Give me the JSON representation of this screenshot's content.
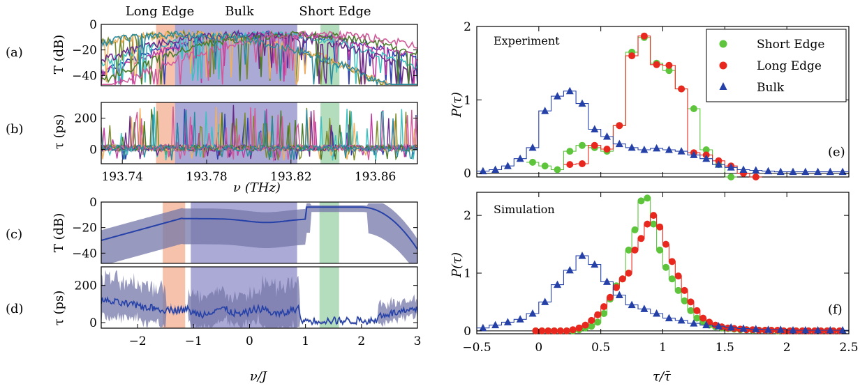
{
  "bands": {
    "top_labels": [
      "Long Edge",
      "Bulk",
      "Short Edge"
    ],
    "colors": {
      "long": "#f4b79c",
      "bulk": "#9c9bd0",
      "short": "#a6d7b2"
    }
  },
  "left_panels": [
    {
      "id": "a",
      "label": "(a)",
      "ylabel": "T (dB)",
      "ylim": [
        -48,
        0
      ],
      "yticks": [
        0,
        -20,
        -40
      ],
      "xaxis": "freq",
      "bands_x": [
        [
          193.756,
          193.765
        ],
        [
          193.765,
          193.823
        ],
        [
          193.834,
          193.843
        ]
      ]
    },
    {
      "id": "b",
      "label": "(b)",
      "ylabel": "τ (ps)",
      "ylim": [
        -90,
        300
      ],
      "yticks": [
        200,
        0
      ],
      "xaxis": "freq",
      "bands_x": [
        [
          193.756,
          193.765
        ],
        [
          193.765,
          193.823
        ],
        [
          193.834,
          193.843
        ]
      ],
      "xticks": [
        "193.74",
        "193.78",
        "193.82",
        "193.86"
      ],
      "xtick_values": [
        193.74,
        193.78,
        193.82,
        193.86
      ],
      "xlabel": "ν (THz)",
      "xlim": [
        193.73,
        193.88
      ]
    },
    {
      "id": "c",
      "label": "(c)",
      "ylabel": "T (dB)",
      "ylim": [
        -48,
        0
      ],
      "yticks": [
        0,
        -20,
        -40
      ],
      "xaxis": "nuJ",
      "bands_x": [
        [
          -1.55,
          -1.15
        ],
        [
          -1.05,
          0.85
        ],
        [
          1.25,
          1.6
        ]
      ]
    },
    {
      "id": "d",
      "label": "(d)",
      "ylabel": "τ (ps)",
      "ylim": [
        -30,
        300
      ],
      "yticks": [
        200,
        0
      ],
      "xaxis": "nuJ",
      "bands_x": [
        [
          -1.55,
          -1.15
        ],
        [
          -1.05,
          0.85
        ],
        [
          1.25,
          1.6
        ]
      ],
      "xticks": [
        "−2",
        "−1",
        "0",
        "1",
        "2",
        "3"
      ],
      "xtick_values": [
        -2,
        -1,
        0,
        1,
        2,
        3
      ],
      "xlabel": "ν/J",
      "xlim": [
        -2.65,
        3
      ]
    }
  ],
  "chart_data": [
    {
      "type": "line",
      "panel": "e",
      "label": "(e)",
      "annotation": "Experiment",
      "xlabel": "τ/τ̄",
      "ylabel": "P(τ)",
      "xlim": [
        -0.5,
        2.5
      ],
      "ylim": [
        -0.05,
        2.0
      ],
      "xticks": [
        -0.5,
        0,
        0.5,
        1,
        1.5,
        2,
        2.5
      ],
      "xtick_labels": [
        "−0.5",
        "0",
        "0.5",
        "1",
        "1.5",
        "2",
        "2.5"
      ],
      "yticks": [
        0,
        1,
        2
      ],
      "series": [
        {
          "name": "Short Edge",
          "color": "#5dc43c",
          "marker": "circle",
          "bin": 0.1,
          "x": [
            -0.05,
            0.05,
            0.15,
            0.25,
            0.35,
            0.45,
            0.55,
            0.65,
            0.75,
            0.85,
            0.95,
            1.05,
            1.15,
            1.25,
            1.35,
            1.45,
            1.55
          ],
          "values": [
            0.15,
            0.1,
            0.05,
            0.3,
            0.38,
            0.35,
            0.3,
            0.65,
            1.65,
            1.85,
            1.5,
            1.4,
            1.15,
            0.88,
            0.32,
            0.12,
            -0.05
          ]
        },
        {
          "name": "Long Edge",
          "color": "#e8281e",
          "marker": "circle",
          "bin": 0.1,
          "x": [
            0.25,
            0.35,
            0.45,
            0.55,
            0.65,
            0.75,
            0.85,
            0.95,
            1.05,
            1.15,
            1.25,
            1.35,
            1.45,
            1.55,
            1.65,
            1.75
          ],
          "values": [
            0.12,
            0.13,
            0.38,
            0.33,
            0.65,
            1.6,
            1.87,
            1.48,
            1.47,
            1.15,
            0.28,
            0.25,
            0.17,
            0.1,
            0.0,
            -0.05
          ]
        },
        {
          "name": "Bulk",
          "color": "#2541a8",
          "marker": "triangle",
          "bin": 0.1,
          "x": [
            -0.45,
            -0.35,
            -0.25,
            -0.15,
            -0.05,
            0.05,
            0.15,
            0.25,
            0.35,
            0.45,
            0.55,
            0.65,
            0.75,
            0.85,
            0.95,
            1.05,
            1.15,
            1.25,
            1.35,
            1.45,
            1.55,
            1.65,
            1.75,
            1.85,
            1.95,
            2.05,
            2.15,
            2.25,
            2.35,
            2.45
          ],
          "values": [
            0.03,
            0.05,
            0.1,
            0.2,
            0.35,
            0.85,
            1.05,
            1.12,
            0.95,
            0.6,
            0.5,
            0.4,
            0.35,
            0.32,
            0.34,
            0.32,
            0.3,
            0.25,
            0.2,
            0.12,
            0.08,
            0.05,
            0.04,
            0.03,
            0.02,
            0.02,
            0.02,
            0.02,
            0.02,
            0.02
          ]
        }
      ],
      "legend": "top-right",
      "grid": false
    },
    {
      "type": "line",
      "panel": "f",
      "label": "(f)",
      "annotation": "Simulation",
      "xlabel": "τ/τ̄",
      "ylabel": "P(τ)",
      "xlim": [
        -0.5,
        2.5
      ],
      "ylim": [
        -0.05,
        2.4
      ],
      "xticks": [
        -0.5,
        0,
        0.5,
        1,
        1.5,
        2,
        2.5
      ],
      "xtick_labels": [
        "−0.5",
        "0",
        "0.5",
        "1",
        "1.5",
        "2",
        "2.5"
      ],
      "yticks": [
        0,
        1,
        2
      ],
      "series": [
        {
          "name": "Short Edge",
          "color": "#5dc43c",
          "marker": "circle",
          "bin": 0.05,
          "x": [
            -0.025,
            0.025,
            0.075,
            0.125,
            0.175,
            0.225,
            0.275,
            0.325,
            0.375,
            0.425,
            0.475,
            0.525,
            0.575,
            0.625,
            0.675,
            0.725,
            0.775,
            0.825,
            0.875,
            0.925,
            0.975,
            1.025,
            1.075,
            1.125,
            1.175,
            1.225,
            1.275,
            1.325,
            1.375,
            1.425,
            1.475,
            1.525,
            1.575,
            1.625,
            1.675,
            1.725,
            1.775,
            1.825,
            1.875,
            1.925,
            1.975,
            2.025,
            2.075,
            2.125,
            2.175,
            2.225,
            2.275,
            2.325,
            2.375,
            2.425
          ],
          "values": [
            0,
            0,
            0,
            0,
            0,
            0,
            0,
            0.02,
            0.05,
            0.08,
            0.15,
            0.3,
            0.55,
            0.78,
            0.9,
            1.4,
            1.75,
            2.25,
            2.3,
            1.85,
            1.4,
            1.1,
            0.9,
            0.7,
            0.52,
            0.35,
            0.22,
            0.15,
            0.1,
            0.07,
            0.05,
            0.04,
            0.03,
            0.02,
            0.02,
            0.01,
            0.01,
            0.01,
            0.01,
            0,
            0,
            0,
            0,
            0,
            0,
            0,
            0,
            0,
            0,
            0
          ]
        },
        {
          "name": "Long Edge",
          "color": "#e8281e",
          "marker": "circle",
          "bin": 0.05,
          "x": [
            -0.025,
            0.025,
            0.075,
            0.125,
            0.175,
            0.225,
            0.275,
            0.325,
            0.375,
            0.425,
            0.475,
            0.525,
            0.575,
            0.625,
            0.675,
            0.725,
            0.775,
            0.825,
            0.875,
            0.925,
            0.975,
            1.025,
            1.075,
            1.125,
            1.175,
            1.225,
            1.275,
            1.325,
            1.375,
            1.425,
            1.475,
            1.525,
            1.575,
            1.625,
            1.675,
            1.725,
            1.775,
            1.825,
            1.875,
            1.925,
            1.975,
            2.025,
            2.075,
            2.125,
            2.175,
            2.225,
            2.275,
            2.325,
            2.375,
            2.425
          ],
          "values": [
            0,
            0,
            0,
            0,
            0,
            0,
            0.02,
            0.05,
            0.1,
            0.18,
            0.28,
            0.42,
            0.58,
            0.75,
            0.9,
            1.0,
            1.4,
            1.6,
            1.85,
            2.0,
            1.8,
            1.5,
            1.2,
            0.95,
            0.7,
            0.5,
            0.35,
            0.22,
            0.15,
            0.1,
            0.07,
            0.05,
            0.04,
            0.03,
            0.02,
            0.02,
            0.01,
            0.01,
            0.01,
            0.01,
            0,
            0,
            0,
            0,
            0,
            0,
            0,
            0,
            0,
            0
          ]
        },
        {
          "name": "Bulk",
          "color": "#2541a8",
          "marker": "triangle",
          "bin": 0.1,
          "x": [
            -0.45,
            -0.35,
            -0.25,
            -0.15,
            -0.05,
            0.05,
            0.15,
            0.25,
            0.35,
            0.45,
            0.55,
            0.65,
            0.75,
            0.85,
            0.95,
            1.05,
            1.15,
            1.25,
            1.35,
            1.45,
            1.55,
            1.65,
            1.75,
            1.85,
            1.95,
            2.05,
            2.15,
            2.25,
            2.35,
            2.45
          ],
          "values": [
            0.05,
            0.1,
            0.15,
            0.2,
            0.3,
            0.5,
            0.8,
            1.05,
            1.3,
            1.15,
            0.85,
            0.62,
            0.45,
            0.38,
            0.3,
            0.22,
            0.18,
            0.13,
            0.1,
            0.08,
            0.06,
            0.04,
            0.03,
            0.02,
            0.02,
            0.01,
            0.01,
            0.01,
            0.01,
            0.01
          ]
        }
      ],
      "legend": "none",
      "grid": false
    }
  ]
}
